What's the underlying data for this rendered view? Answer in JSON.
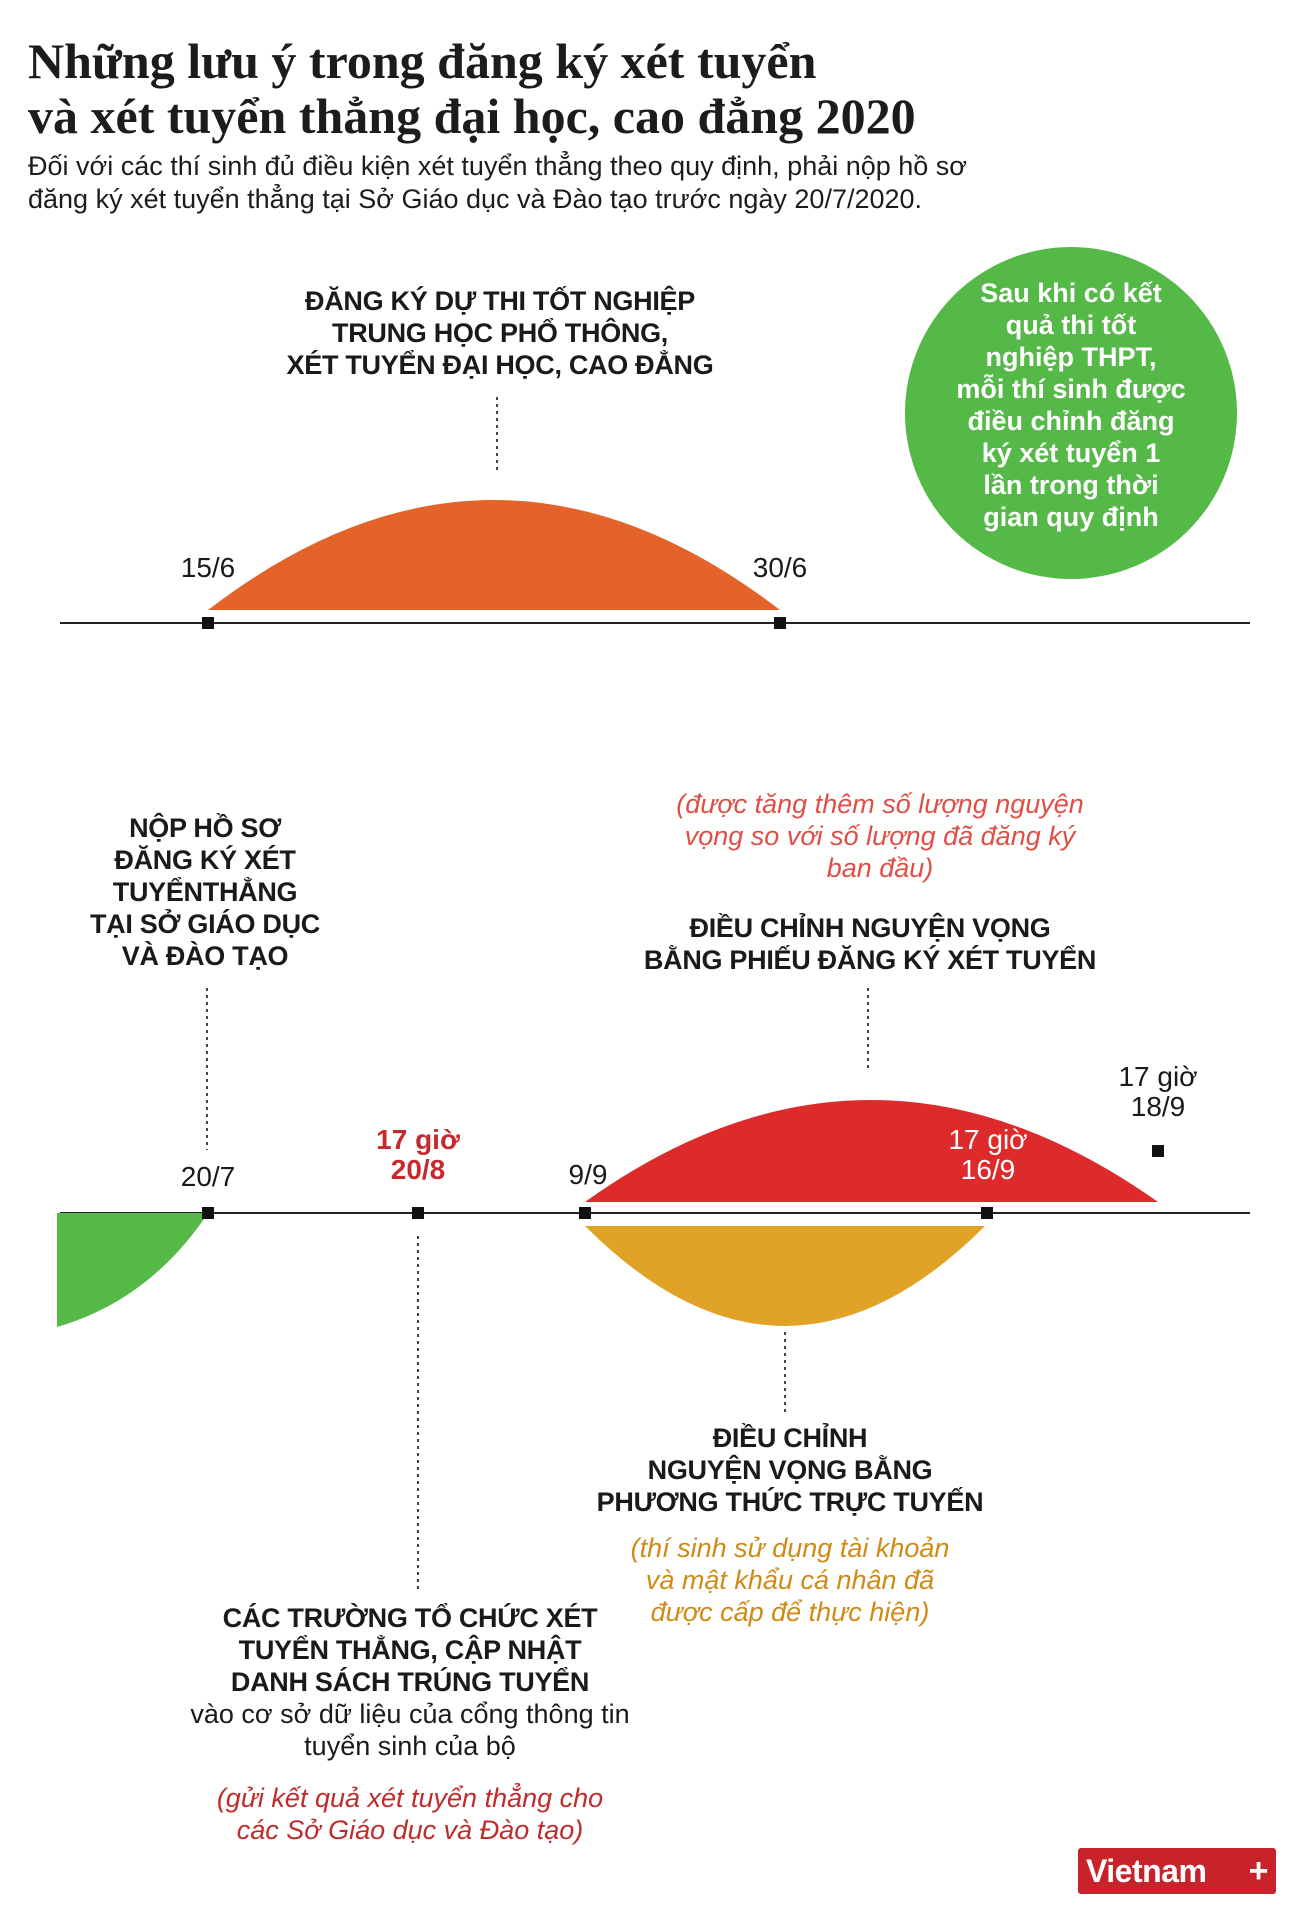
{
  "header": {
    "title_lines": [
      "Những lưu ý trong đăng ký xét tuyển",
      "và xét tuyển thẳng đại học, cao đẳng 2020"
    ],
    "subtitle": "Đối với các thí sinh đủ điều kiện xét tuyển thẳng theo quy định, phải nộp hồ sơ đăng ký xét tuyển thẳng tại Sở Giáo dục và Đào tạo trước ngày 20/7/2020."
  },
  "top_timeline": {
    "event_lines": [
      "ĐĂNG KÝ DỰ THI TỐT NGHIỆP",
      "TRUNG HỌC PHỔ THÔNG,",
      "XÉT TUYỂN ĐẠI HỌC, CAO ĐẲNG"
    ],
    "start_date": "15/6",
    "end_date": "30/6",
    "side_note_lines": [
      "Sau khi có kết",
      "quả thi tốt",
      "nghiệp THPT,",
      "mỗi thí sinh được",
      "điều chỉnh đăng",
      "ký xét tuyển 1",
      "lần trong thời",
      "gian quy định"
    ]
  },
  "bottom_timeline": {
    "submit_lines": [
      "NỘP HỒ SƠ",
      "ĐĂNG KÝ XÉT",
      "TUYỂNTHẲNG",
      "TẠI SỞ GIÁO DỤC",
      "VÀ ĐÀO TẠO"
    ],
    "date_20_7": "20/7",
    "deadline_20_8": [
      "17 giờ",
      "20/8"
    ],
    "date_9_9": "9/9",
    "date_16_9": [
      "17 giờ",
      "16/9"
    ],
    "date_18_9": [
      "17 giờ",
      "18/9"
    ],
    "paper_note_lines": [
      "(được tăng thêm số lượng nguyện",
      "vọng so với số lượng đã đăng ký",
      "ban đầu)"
    ],
    "paper_event_lines": [
      "ĐIỀU CHỈNH NGUYỆN VỌNG",
      "BẰNG PHIẾU ĐĂNG KÝ XÉT TUYỂN"
    ],
    "online_event_lines": [
      "ĐIỀU CHỈNH",
      "NGUYỆN VỌNG BẰNG",
      "PHƯƠNG THỨC TRỰC TUYẾN"
    ],
    "online_note_lines": [
      "(thí sinh sử dụng tài khoản",
      "và mật khẩu cá nhân đã",
      "được cấp để thực hiện)"
    ],
    "schools_event_lines": [
      "CÁC TRƯỜNG TỔ CHỨC XÉT",
      "TUYỂN THẲNG, CẬP NHẬT",
      "DANH SÁCH TRÚNG TUYỂN"
    ],
    "schools_detail_lines": [
      "vào cơ sở dữ liệu của cổng thông tin",
      "tuyển sinh của bộ"
    ],
    "schools_note_lines": [
      "(gửi kết quả xét tuyển thẳng cho",
      "các Sở Giáo dục và Đào tạo)"
    ]
  },
  "footer": {
    "logo_text": "Vietnam",
    "logo_mark": "+"
  },
  "colors": {
    "orange": "#e4632a",
    "green": "#55b947",
    "red": "#dd2a2b",
    "amber": "#e0a327",
    "axis": "#222222"
  }
}
